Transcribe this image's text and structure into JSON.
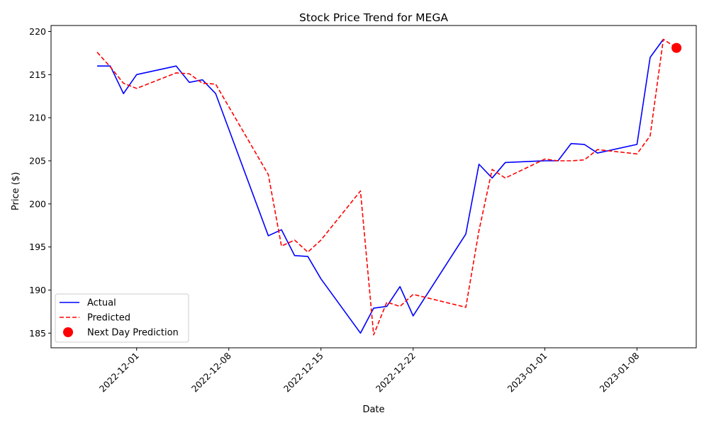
{
  "chart_data": {
    "type": "line",
    "title": "Stock Price Trend for MEGA",
    "xlabel": "Date",
    "ylabel": "Price ($)",
    "xlim": [
      "2022-11-24T12:00",
      "2023-01-12T12:00"
    ],
    "ylim": [
      183.3,
      220.7
    ],
    "x_ticks": [
      "2022-12-01",
      "2022-12-08",
      "2022-12-15",
      "2022-12-22",
      "2023-01-01",
      "2023-01-08"
    ],
    "y_ticks": [
      185,
      190,
      195,
      200,
      205,
      210,
      215,
      220
    ],
    "grid": false,
    "legend_position": "lower-left",
    "series": [
      {
        "name": "Actual",
        "color": "#0000ff",
        "style": "solid",
        "x": [
          "2022-11-28",
          "2022-11-29",
          "2022-11-30",
          "2022-12-01",
          "2022-12-04",
          "2022-12-05",
          "2022-12-06",
          "2022-12-07",
          "2022-12-11",
          "2022-12-12",
          "2022-12-13",
          "2022-12-14",
          "2022-12-15",
          "2022-12-18",
          "2022-12-19",
          "2022-12-20",
          "2022-12-21",
          "2022-12-22",
          "2022-12-26",
          "2022-12-27",
          "2022-12-28",
          "2022-12-29",
          "2023-01-01",
          "2023-01-02",
          "2023-01-03",
          "2023-01-04",
          "2023-01-05",
          "2023-01-08",
          "2023-01-09",
          "2023-01-10"
        ],
        "values": [
          216.0,
          216.0,
          212.8,
          215.0,
          216.0,
          214.1,
          214.4,
          212.8,
          196.3,
          197.0,
          194.0,
          193.9,
          191.3,
          185.0,
          187.9,
          188.1,
          190.4,
          187.0,
          196.5,
          204.6,
          203.0,
          204.8,
          205.0,
          205.0,
          207.0,
          206.9,
          205.9,
          206.9,
          217.0,
          219.1
        ]
      },
      {
        "name": "Predicted",
        "color": "#ff0000",
        "style": "dashed",
        "x": [
          "2022-11-28",
          "2022-11-29",
          "2022-11-30",
          "2022-12-01",
          "2022-12-04",
          "2022-12-05",
          "2022-12-06",
          "2022-12-07",
          "2022-12-11",
          "2022-12-12",
          "2022-12-13",
          "2022-12-14",
          "2022-12-15",
          "2022-12-18",
          "2022-12-19",
          "2022-12-20",
          "2022-12-21",
          "2022-12-22",
          "2022-12-26",
          "2022-12-27",
          "2022-12-28",
          "2022-12-29",
          "2023-01-01",
          "2023-01-02",
          "2023-01-03",
          "2023-01-04",
          "2023-01-05",
          "2023-01-08",
          "2023-01-09",
          "2023-01-10",
          "2023-01-11"
        ],
        "values": [
          217.6,
          215.9,
          214.0,
          213.4,
          215.2,
          215.1,
          214.0,
          213.9,
          203.4,
          195.1,
          195.8,
          194.4,
          195.8,
          201.5,
          184.8,
          188.6,
          188.1,
          189.5,
          188.0,
          196.9,
          204.0,
          203.0,
          205.2,
          205.0,
          205.0,
          205.1,
          206.3,
          205.8,
          207.9,
          219.1,
          218.1
        ]
      },
      {
        "name": "Next Day Prediction",
        "color": "#ff0000",
        "style": "marker",
        "x": [
          "2023-01-11"
        ],
        "values": [
          218.1
        ]
      }
    ]
  }
}
